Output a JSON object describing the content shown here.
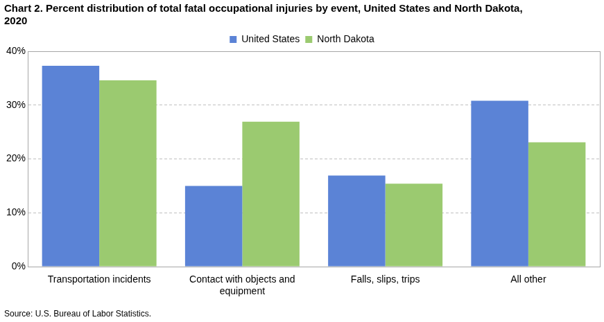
{
  "chart_data": {
    "type": "bar",
    "title": [
      "Chart 2. Percent distribution of total fatal occupational injuries by event, United States and North Dakota,",
      "2020"
    ],
    "source": "Source: U.S. Bureau of Labor Statistics.",
    "categories": [
      "Transportation incidents",
      "Contact with objects and equipment",
      "Falls, slips, trips",
      "All other"
    ],
    "series": [
      {
        "name": "United States",
        "color": "#5b83d6",
        "values": [
          37.3,
          15.0,
          16.9,
          30.8
        ]
      },
      {
        "name": "North Dakota",
        "color": "#9bca70",
        "values": [
          34.6,
          26.9,
          15.4,
          23.1
        ]
      }
    ],
    "ylim": [
      0,
      40
    ],
    "yticks": [
      {
        "value": 0,
        "label": "0%"
      },
      {
        "value": 10,
        "label": "10%"
      },
      {
        "value": 20,
        "label": "20%"
      },
      {
        "value": 30,
        "label": "30%"
      },
      {
        "value": 40,
        "label": "40%"
      }
    ],
    "grid": true,
    "legend": "top"
  }
}
